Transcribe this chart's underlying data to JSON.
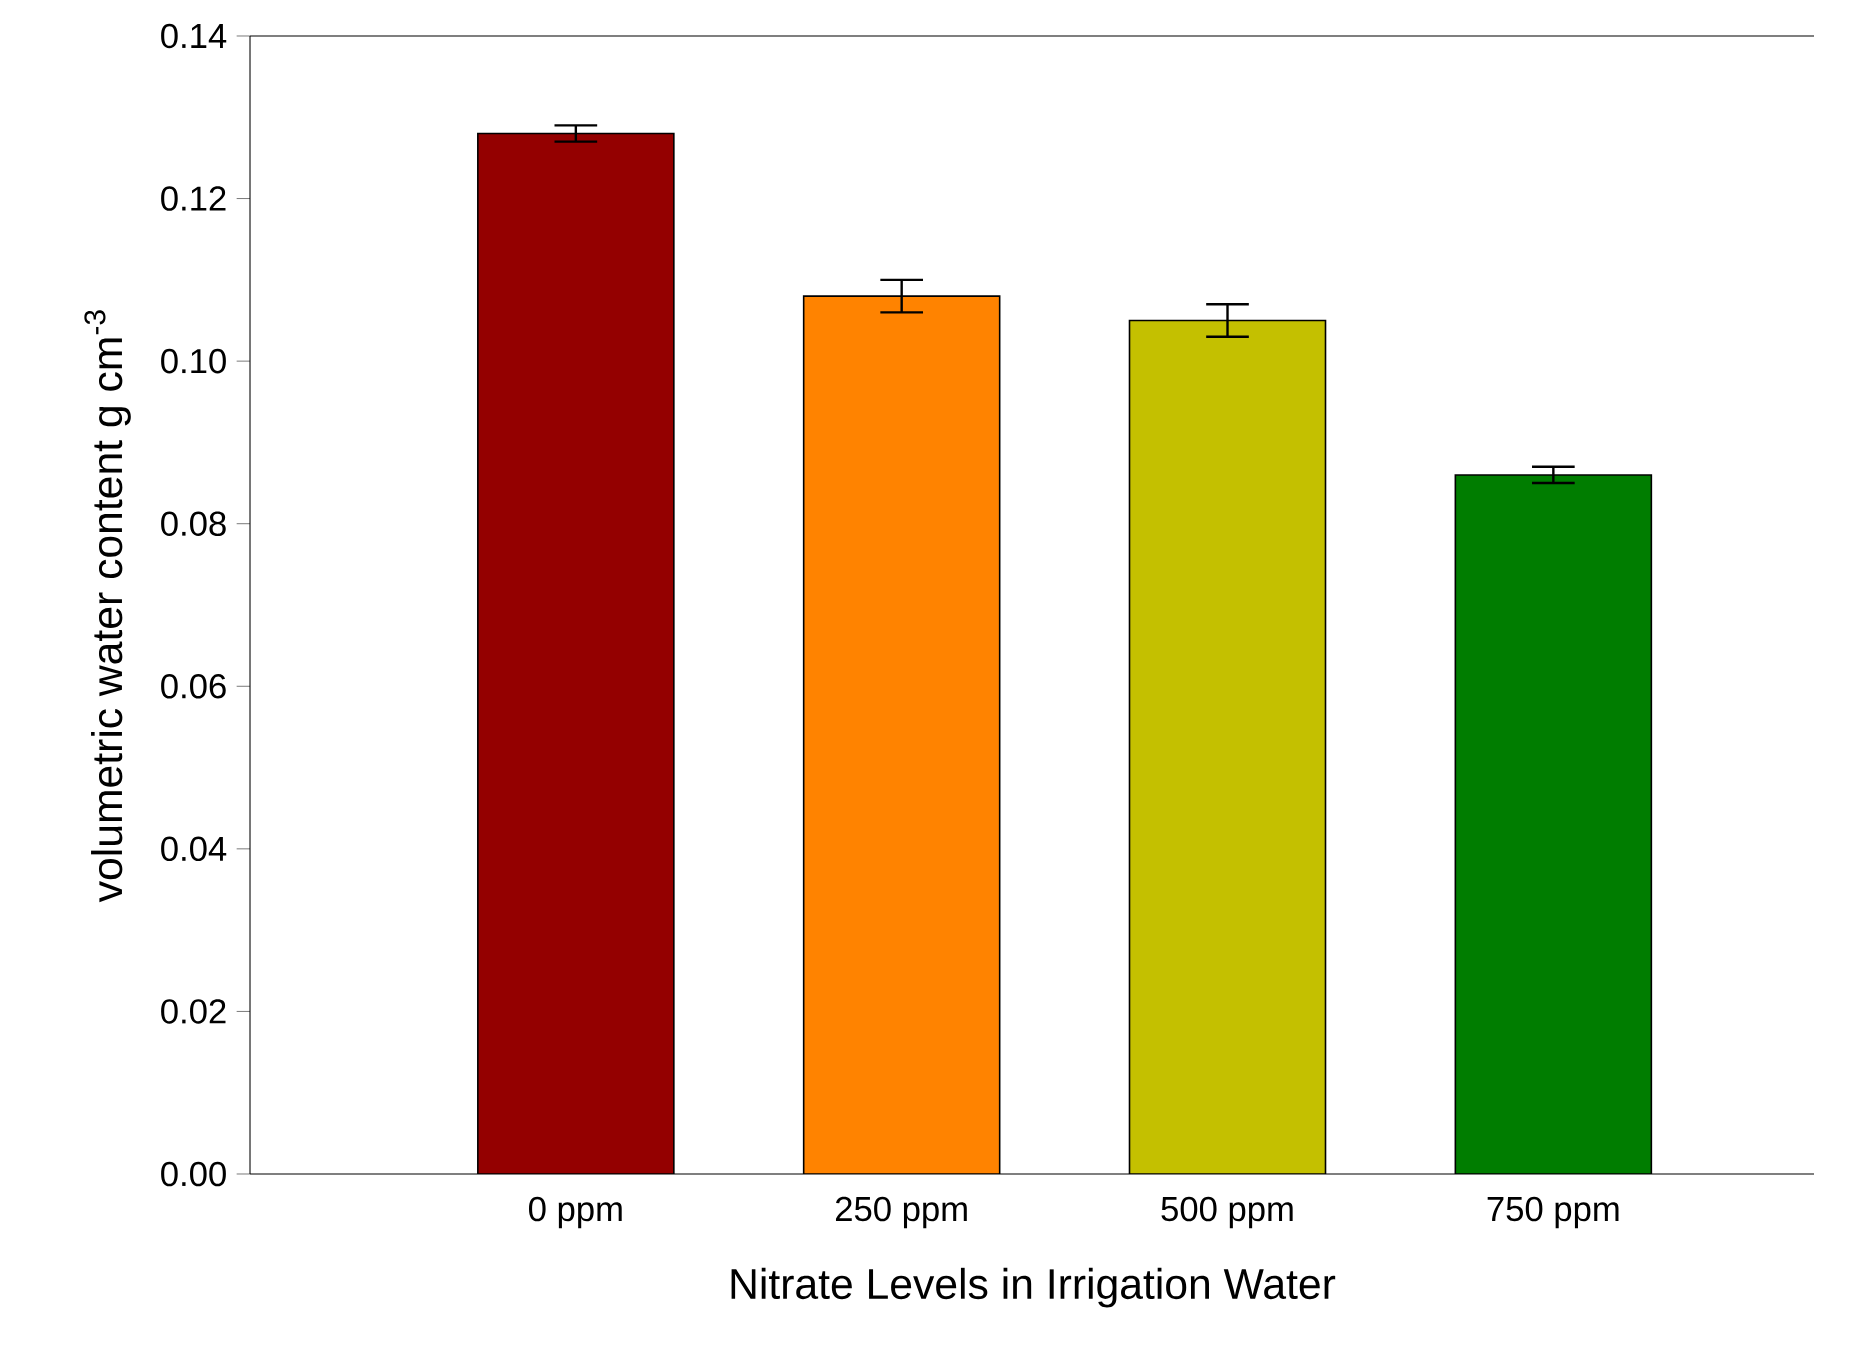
{
  "chart_data": {
    "type": "bar",
    "xlabel": "Nitrate Levels in Irrigation Water",
    "ylabel": "volumetric water content g cm$^{-3}$",
    "categories": [
      "0 ppm",
      "250 ppm",
      "500 ppm",
      "750 ppm"
    ],
    "values": [
      0.128,
      0.108,
      0.105,
      0.086
    ],
    "errors": [
      0.001,
      0.002,
      0.002,
      0.001
    ],
    "colors": [
      "#940000",
      "#ff8300",
      "#c4c000",
      "#007d00"
    ],
    "ylim": [
      0,
      0.14
    ],
    "yticks": [
      {
        "value": 0,
        "label": "0.00"
      },
      {
        "value": 0.02,
        "label": "0.02"
      },
      {
        "value": 0.04,
        "label": "0.04"
      },
      {
        "value": 0.06,
        "label": "0.06"
      },
      {
        "value": 0.08,
        "label": "0.08"
      },
      {
        "value": 0.1,
        "label": "0.10"
      },
      {
        "value": 0.12,
        "label": "0.12"
      },
      {
        "value": 0.14,
        "label": "0.14"
      }
    ],
    "grid": false
  }
}
